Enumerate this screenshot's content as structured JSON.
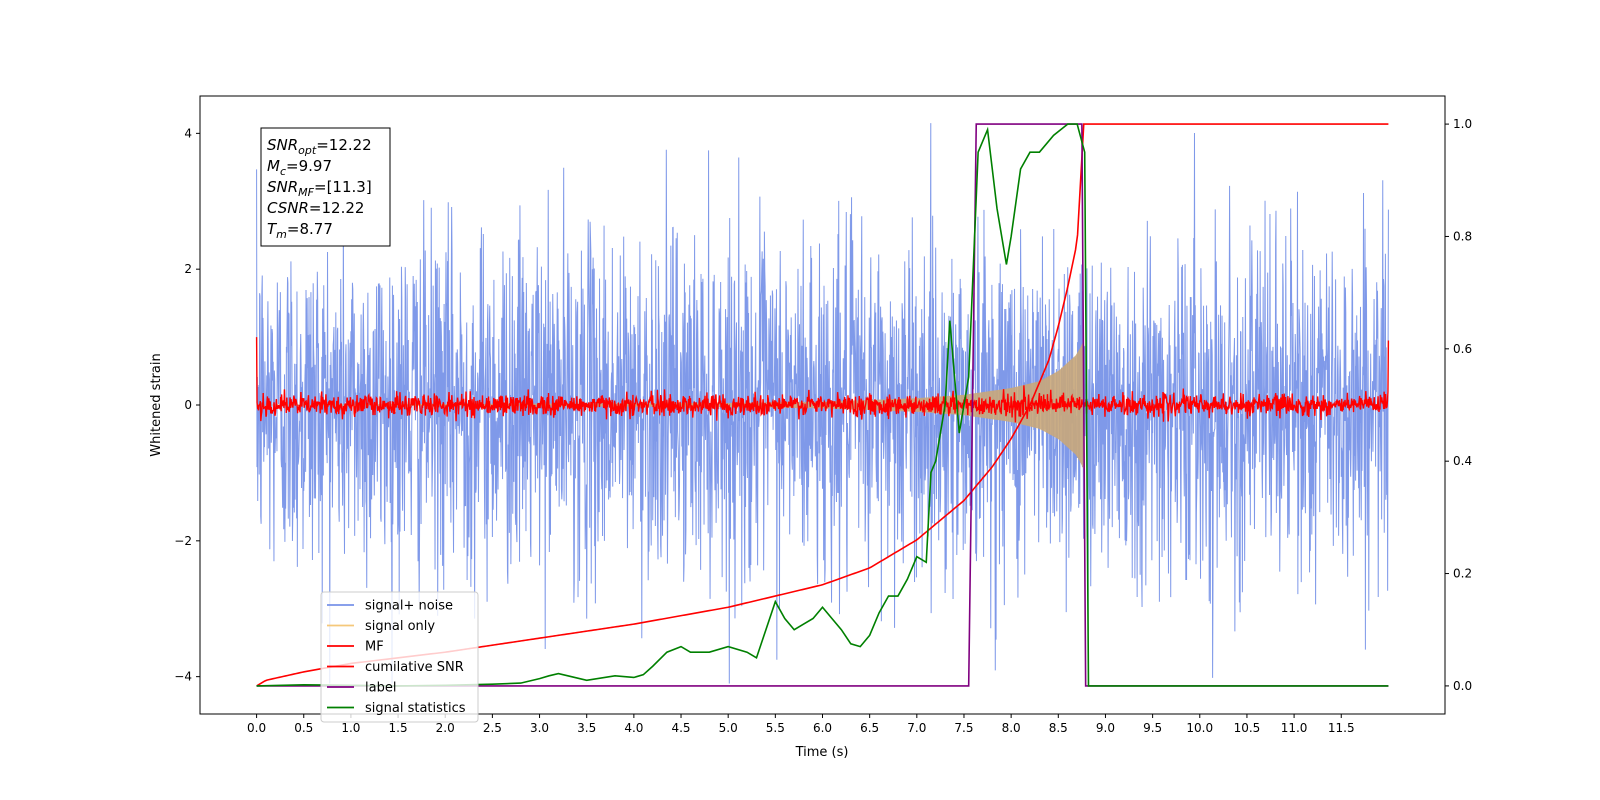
{
  "chart_data": {
    "type": "line",
    "xlabel": "Time (s)",
    "ylabel": "Whitened strain",
    "xlim": [
      -0.6,
      12.6
    ],
    "ylim": [
      -4.55,
      4.55
    ],
    "y2lim": [
      -0.05,
      1.05
    ],
    "grid": false,
    "x_ticks": [
      0.0,
      0.5,
      1.0,
      1.5,
      2.0,
      2.5,
      3.0,
      3.5,
      4.0,
      4.5,
      5.0,
      5.5,
      6.0,
      6.5,
      7.0,
      7.5,
      8.0,
      8.5,
      9.0,
      9.5,
      10.0,
      10.5,
      11.0,
      11.5
    ],
    "x_tick_labels": [
      "0.0",
      "0.5",
      "1.0",
      "1.5",
      "2.0",
      "2.5",
      "3.0",
      "3.5",
      "4.0",
      "4.5",
      "5.0",
      "5.5",
      "6.0",
      "6.5",
      "7.0",
      "7.5",
      "8.0",
      "8.5",
      "9.0",
      "9.5",
      "10.0",
      "10.5",
      "11.0",
      "11.5"
    ],
    "y_ticks": [
      -4,
      -2,
      0,
      2,
      4
    ],
    "y_tick_labels": [
      "−4",
      "−2",
      "0",
      "2",
      "4"
    ],
    "y2_ticks": [
      0.0,
      0.2,
      0.4,
      0.6,
      0.8,
      1.0
    ],
    "y2_tick_labels": [
      "0.0",
      "0.2",
      "0.4",
      "0.6",
      "0.8",
      "1.0"
    ],
    "annotation": {
      "lines": [
        {
          "sym": "SNR",
          "sub": "opt",
          "val": "=12.22"
        },
        {
          "sym": "M",
          "sub": "c",
          "val": "=9.97"
        },
        {
          "sym": "SNR",
          "sub": "MF",
          "val": "=[11.3]"
        },
        {
          "sym": "CSNR",
          "sub": "",
          "val": "=12.22"
        },
        {
          "sym": "T",
          "sub": "m",
          "val": "=8.77"
        }
      ]
    },
    "legend": {
      "position": "lower-left",
      "entries": [
        {
          "label": "signal+ noise",
          "color": "#7893e8"
        },
        {
          "label": "signal only",
          "color": "#f5c87a"
        },
        {
          "label": "MF",
          "color": "#ff0000"
        },
        {
          "label": "cumilative SNR",
          "color": "#ff0000"
        },
        {
          "label": "label",
          "color": "#800080"
        },
        {
          "label": "signal statistics",
          "color": "#008000"
        }
      ]
    },
    "series": [
      {
        "name": "signal+ noise",
        "axis": "left",
        "color": "#7893e8",
        "kind": "noise",
        "t_range": [
          0.0,
          12.0
        ],
        "std": 1.25,
        "peak_range": [
          -4.1,
          4.15
        ]
      },
      {
        "name": "signal only",
        "axis": "left",
        "color": "#c9a77a",
        "kind": "chirp-envelope",
        "t_range": [
          0.0,
          8.77
        ],
        "envelope": [
          [
            0.0,
            0.005
          ],
          [
            5.0,
            0.03
          ],
          [
            6.0,
            0.05
          ],
          [
            7.0,
            0.1
          ],
          [
            7.5,
            0.15
          ],
          [
            8.0,
            0.25
          ],
          [
            8.3,
            0.35
          ],
          [
            8.5,
            0.5
          ],
          [
            8.7,
            0.75
          ],
          [
            8.77,
            0.95
          ]
        ]
      },
      {
        "name": "MF",
        "axis": "left",
        "color": "#ff0000",
        "kind": "noise",
        "t_range": [
          0.0,
          12.0
        ],
        "std": 0.08,
        "edge_values": [
          1.0,
          0.95
        ]
      },
      {
        "name": "cumilative SNR",
        "axis": "right",
        "color": "#ff0000",
        "points": [
          [
            0.0,
            0.0
          ],
          [
            0.1,
            0.01
          ],
          [
            0.5,
            0.025
          ],
          [
            1.0,
            0.04
          ],
          [
            2.0,
            0.06
          ],
          [
            3.0,
            0.085
          ],
          [
            4.0,
            0.11
          ],
          [
            5.0,
            0.14
          ],
          [
            6.0,
            0.18
          ],
          [
            6.5,
            0.21
          ],
          [
            7.0,
            0.26
          ],
          [
            7.5,
            0.33
          ],
          [
            7.8,
            0.39
          ],
          [
            8.0,
            0.44
          ],
          [
            8.2,
            0.5
          ],
          [
            8.4,
            0.58
          ],
          [
            8.5,
            0.64
          ],
          [
            8.6,
            0.71
          ],
          [
            8.7,
            0.79
          ],
          [
            8.77,
            1.0
          ],
          [
            12.0,
            1.0
          ]
        ]
      },
      {
        "name": "label",
        "axis": "right",
        "color": "#800080",
        "points": [
          [
            0.0,
            0.0
          ],
          [
            7.55,
            0.0
          ],
          [
            7.63,
            1.0
          ],
          [
            8.75,
            1.0
          ],
          [
            8.79,
            0.0
          ],
          [
            12.0,
            0.0
          ]
        ]
      },
      {
        "name": "signal statistics",
        "axis": "right",
        "color": "#008000",
        "points": [
          [
            0.0,
            0.0
          ],
          [
            0.5,
            0.002
          ],
          [
            1.0,
            0.001
          ],
          [
            1.5,
            0.0
          ],
          [
            2.0,
            0.001
          ],
          [
            2.5,
            0.003
          ],
          [
            2.8,
            0.005
          ],
          [
            3.0,
            0.013
          ],
          [
            3.1,
            0.018
          ],
          [
            3.2,
            0.022
          ],
          [
            3.3,
            0.018
          ],
          [
            3.5,
            0.01
          ],
          [
            3.8,
            0.018
          ],
          [
            4.0,
            0.015
          ],
          [
            4.1,
            0.02
          ],
          [
            4.2,
            0.035
          ],
          [
            4.35,
            0.06
          ],
          [
            4.5,
            0.07
          ],
          [
            4.6,
            0.06
          ],
          [
            4.8,
            0.06
          ],
          [
            5.0,
            0.07
          ],
          [
            5.2,
            0.06
          ],
          [
            5.3,
            0.05
          ],
          [
            5.4,
            0.1
          ],
          [
            5.5,
            0.15
          ],
          [
            5.6,
            0.12
          ],
          [
            5.7,
            0.1
          ],
          [
            5.8,
            0.11
          ],
          [
            5.9,
            0.12
          ],
          [
            6.0,
            0.14
          ],
          [
            6.1,
            0.12
          ],
          [
            6.2,
            0.1
          ],
          [
            6.3,
            0.075
          ],
          [
            6.4,
            0.07
          ],
          [
            6.5,
            0.09
          ],
          [
            6.6,
            0.13
          ],
          [
            6.7,
            0.16
          ],
          [
            6.8,
            0.16
          ],
          [
            6.9,
            0.19
          ],
          [
            7.0,
            0.23
          ],
          [
            7.1,
            0.22
          ],
          [
            7.15,
            0.38
          ],
          [
            7.2,
            0.4
          ],
          [
            7.3,
            0.5
          ],
          [
            7.35,
            0.65
          ],
          [
            7.4,
            0.55
          ],
          [
            7.45,
            0.45
          ],
          [
            7.55,
            0.55
          ],
          [
            7.65,
            0.95
          ],
          [
            7.75,
            0.99
          ],
          [
            7.85,
            0.85
          ],
          [
            7.95,
            0.75
          ],
          [
            8.0,
            0.8
          ],
          [
            8.1,
            0.92
          ],
          [
            8.2,
            0.95
          ],
          [
            8.3,
            0.95
          ],
          [
            8.45,
            0.98
          ],
          [
            8.6,
            1.0
          ],
          [
            8.7,
            1.0
          ],
          [
            8.78,
            0.95
          ],
          [
            8.82,
            0.0
          ],
          [
            12.0,
            0.0
          ]
        ]
      }
    ]
  }
}
